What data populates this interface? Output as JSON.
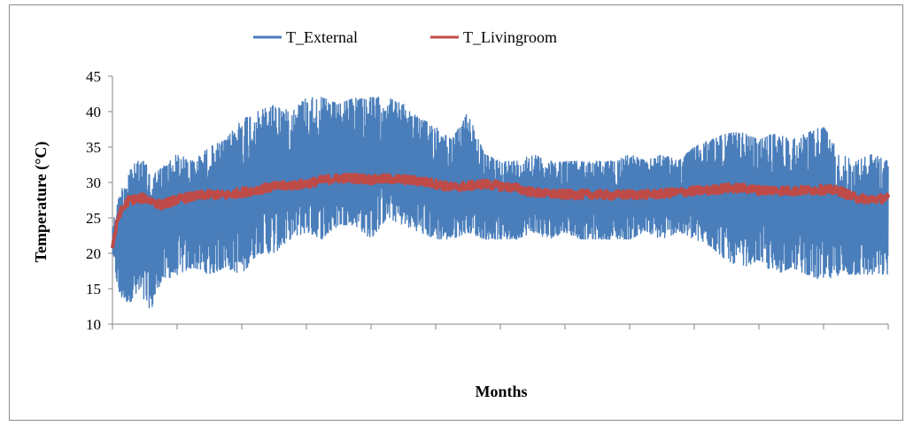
{
  "colors": {
    "external": "#4a7ebb",
    "livingroom": "#be4b48",
    "axis": "#868686"
  },
  "chart_data": {
    "type": "line",
    "xlabel": "Months",
    "ylabel": "Temperature (°C)",
    "ylim": [
      10,
      45
    ],
    "y_ticks": [
      "10",
      "15",
      "20",
      "25",
      "30",
      "35",
      "40",
      "45"
    ],
    "x_tick_count": 12,
    "grid": false,
    "legend_position": "top",
    "series": [
      {
        "name": "T_External",
        "color": "#4a7ebb",
        "envelope": {
          "x": [
            0,
            0.1,
            0.25,
            0.4,
            0.5,
            0.6,
            0.75,
            1,
            1.25,
            1.5,
            1.75,
            2,
            2.25,
            2.5,
            2.75,
            3,
            3.25,
            3.5,
            3.75,
            4,
            4.25,
            4.5,
            4.75,
            5,
            5.25,
            5.5,
            5.75,
            6,
            6.25,
            6.5,
            6.75,
            7,
            7.25,
            7.5,
            7.75,
            8,
            8.25,
            8.5,
            8.75,
            9,
            9.25,
            9.5,
            9.75,
            10,
            10.25,
            10.5,
            10.75,
            11,
            11.25,
            11.5,
            11.75,
            12
          ],
          "high": [
            24,
            28,
            32,
            33,
            33,
            31,
            32,
            34,
            33,
            35,
            36,
            39,
            40,
            41,
            40,
            42,
            42,
            41,
            42,
            42,
            42,
            41,
            39,
            38,
            36,
            40,
            34,
            33,
            33,
            34,
            33,
            33,
            33,
            33,
            33,
            34,
            33,
            34,
            33,
            35,
            36,
            37,
            37,
            36,
            37,
            36,
            37,
            38,
            34,
            33,
            34,
            33
          ],
          "low": [
            20,
            14,
            13,
            14,
            13,
            12,
            16,
            17,
            18,
            17,
            18,
            17,
            20,
            20,
            22,
            23,
            22,
            24,
            24,
            22,
            25,
            24,
            23,
            22,
            22,
            23,
            22,
            22,
            22,
            23,
            22,
            23,
            22,
            22,
            22,
            22,
            23,
            22,
            23,
            22,
            21,
            19,
            18,
            19,
            17,
            18,
            17,
            16,
            17,
            17,
            17,
            17
          ]
        }
      },
      {
        "name": "T_Livingroom",
        "color": "#be4b48",
        "x": [
          0,
          0.1,
          0.25,
          0.5,
          0.75,
          1,
          1.25,
          1.5,
          1.75,
          2,
          2.25,
          2.5,
          2.75,
          3,
          3.25,
          3.5,
          3.75,
          4,
          4.25,
          4.5,
          4.75,
          5,
          5.25,
          5.5,
          5.75,
          6,
          6.25,
          6.5,
          6.75,
          7,
          7.25,
          7.5,
          7.75,
          8,
          8.25,
          8.5,
          8.75,
          9,
          9.25,
          9.5,
          9.75,
          10,
          10.25,
          10.5,
          10.75,
          11,
          11.25,
          11.5,
          11.75,
          12
        ],
        "values": [
          21,
          25.5,
          27.5,
          27.8,
          26.8,
          27.6,
          28,
          28.3,
          28.2,
          28.6,
          29,
          29.4,
          29.6,
          29.8,
          30.3,
          30.6,
          30.6,
          30.4,
          30.5,
          30.4,
          30.2,
          29.8,
          29.3,
          29.5,
          29.8,
          29.5,
          29.2,
          28.6,
          28.4,
          28.3,
          28.3,
          28.3,
          28.2,
          28.3,
          28.3,
          28.4,
          28.6,
          28.8,
          28.9,
          29.2,
          29.2,
          28.9,
          28.9,
          28.8,
          28.9,
          29,
          28.8,
          27.8,
          27.6,
          27.8
        ]
      }
    ]
  }
}
